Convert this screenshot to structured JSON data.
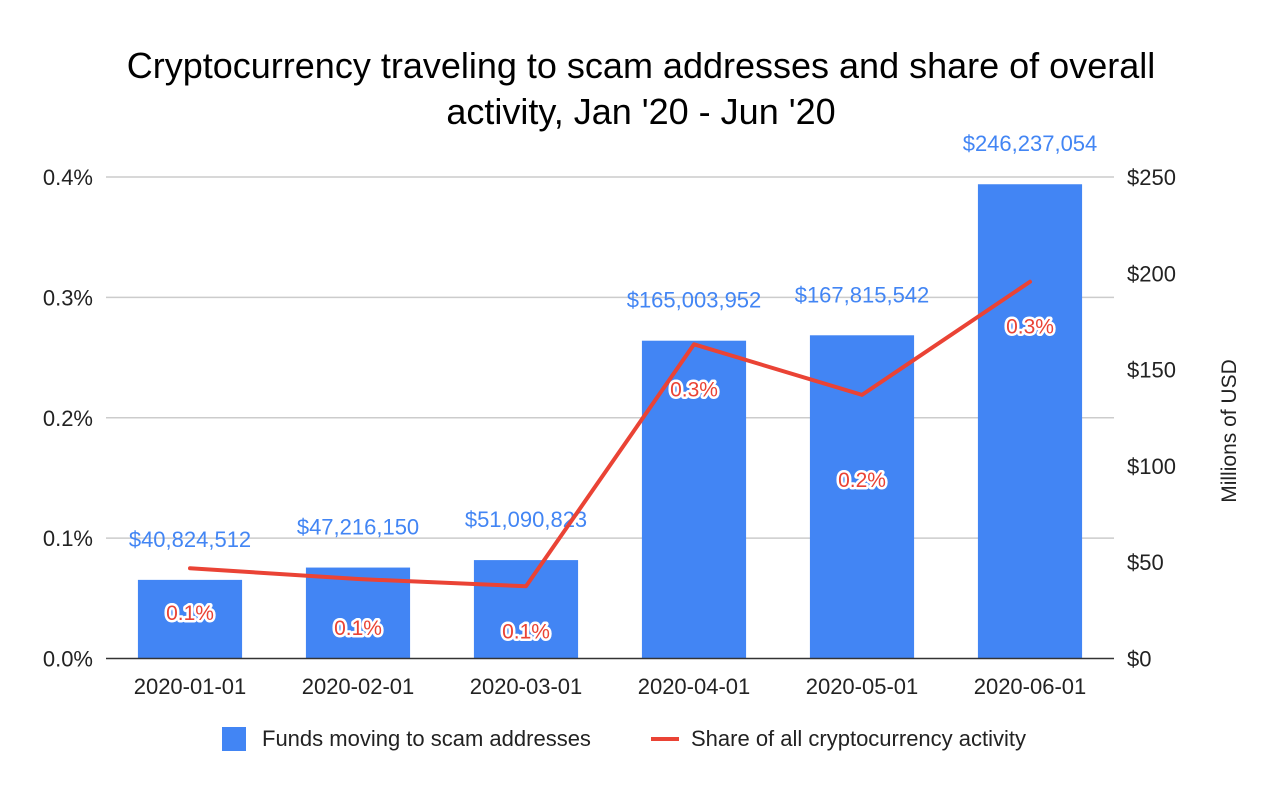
{
  "chart_data": {
    "type": "bar",
    "title_lines": [
      "Cryptocurrency traveling to scam addresses and share of overall",
      "activity, Jan '20 - Jun '20"
    ],
    "categories": [
      "2020-01-01",
      "2020-02-01",
      "2020-03-01",
      "2020-04-01",
      "2020-05-01",
      "2020-06-01"
    ],
    "bar_series": {
      "name": "Funds moving to scam addresses",
      "axis": "right",
      "values_millions_usd": [
        40.824512,
        47.21615,
        51.090823,
        165.003952,
        167.815542,
        246.237054
      ],
      "data_labels": [
        "$40,824,512",
        "$47,216,150",
        "$51,090,823",
        "$165,003,952",
        "$167,815,542",
        "$246,237,054"
      ],
      "color": "#4285f4",
      "label_color": "#4285f4"
    },
    "line_series": {
      "name": "Share of all cryptocurrency activity",
      "axis": "left",
      "values_percent": [
        0.075,
        0.066,
        0.06,
        0.261,
        0.219,
        0.313
      ],
      "data_labels": [
        "0.1%",
        "0.1%",
        "0.1%",
        "0.3%",
        "0.2%",
        "0.3%"
      ],
      "color": "#ea4335"
    },
    "left_axis": {
      "ylim": [
        0,
        0.4
      ],
      "ticks": [
        0,
        0.1,
        0.2,
        0.3,
        0.4
      ],
      "tick_labels": [
        "0.0%",
        "0.1%",
        "0.2%",
        "0.3%",
        "0.4%"
      ]
    },
    "right_axis": {
      "label": "Millions of USD",
      "ylim": [
        0,
        250
      ],
      "ticks": [
        0,
        50,
        100,
        150,
        200,
        250
      ],
      "tick_labels": [
        "$0",
        "$50",
        "$100",
        "$150",
        "$200",
        "$250"
      ]
    },
    "grid": true,
    "legend_position": "bottom"
  }
}
